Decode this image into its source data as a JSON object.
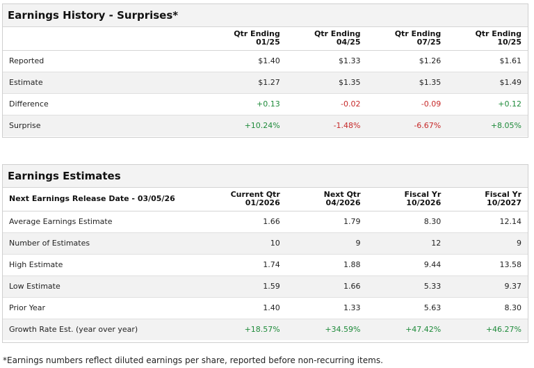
{
  "history": {
    "title": "Earnings History - Surprises*",
    "headers": [
      {
        "line1": "Qtr Ending",
        "line2": "01/25"
      },
      {
        "line1": "Qtr Ending",
        "line2": "04/25"
      },
      {
        "line1": "Qtr Ending",
        "line2": "07/25"
      },
      {
        "line1": "Qtr Ending",
        "line2": "10/25"
      }
    ],
    "rows": [
      {
        "label": "Reported",
        "values": [
          "$1.40",
          "$1.33",
          "$1.26",
          "$1.61"
        ]
      },
      {
        "label": "Estimate",
        "values": [
          "$1.27",
          "$1.35",
          "$1.35",
          "$1.49"
        ]
      },
      {
        "label": "Difference",
        "values": [
          "+0.13",
          "-0.02",
          "-0.09",
          "+0.12"
        ]
      },
      {
        "label": "Surprise",
        "values": [
          "+10.24%",
          "-1.48%",
          "-6.67%",
          "+8.05%"
        ]
      }
    ]
  },
  "estimates": {
    "title": "Earnings Estimates",
    "release_label": "Next Earnings Release Date - 03/05/26",
    "headers": [
      {
        "line1": "Current Qtr",
        "line2": "01/2026"
      },
      {
        "line1": "Next Qtr",
        "line2": "04/2026"
      },
      {
        "line1": "Fiscal Yr",
        "line2": "10/2026"
      },
      {
        "line1": "Fiscal Yr",
        "line2": "10/2027"
      }
    ],
    "rows": [
      {
        "label": "Average Earnings Estimate",
        "values": [
          "1.66",
          "1.79",
          "8.30",
          "12.14"
        ]
      },
      {
        "label": "Number of Estimates",
        "values": [
          "10",
          "9",
          "12",
          "9"
        ]
      },
      {
        "label": "High Estimate",
        "values": [
          "1.74",
          "1.88",
          "9.44",
          "13.58"
        ]
      },
      {
        "label": "Low Estimate",
        "values": [
          "1.59",
          "1.66",
          "5.33",
          "9.37"
        ]
      },
      {
        "label": "Prior Year",
        "values": [
          "1.40",
          "1.33",
          "5.63",
          "8.30"
        ]
      },
      {
        "label": "Growth Rate Est. (year over year)",
        "values": [
          "+18.57%",
          "+34.59%",
          "+47.42%",
          "+46.27%"
        ]
      }
    ]
  },
  "footnote": "*Earnings numbers reflect diluted earnings per share, reported before non-recurring items.",
  "colors": {
    "positive": "#1e8a3a",
    "negative": "#c62828"
  }
}
